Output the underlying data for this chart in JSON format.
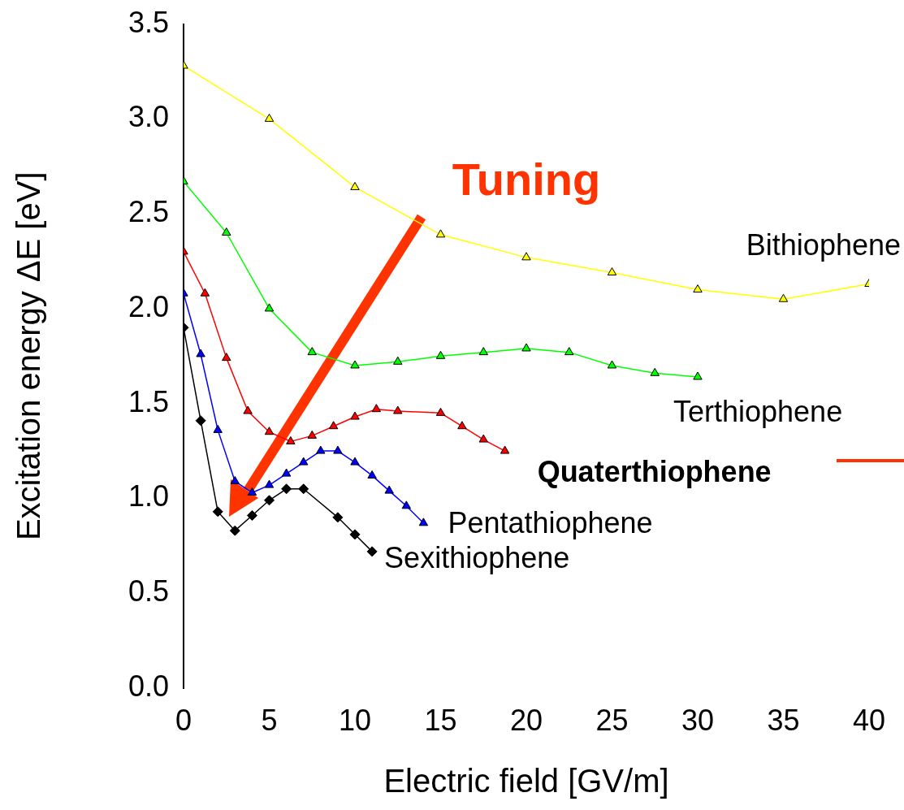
{
  "chart_data": {
    "type": "line",
    "xlabel": "Electric field [GV/m]",
    "ylabel": "Excitation energy ΔE [eV]",
    "xlim": [
      0,
      40
    ],
    "xticks": [
      0,
      5,
      10,
      15,
      20,
      25,
      30,
      35,
      40
    ],
    "ylim": [
      0,
      3.5
    ],
    "yticks": [
      {
        "value": 0,
        "label": "0.0"
      },
      {
        "value": 0.5,
        "label": "0.5"
      },
      {
        "value": 1,
        "label": "1.0"
      },
      {
        "value": 1.5,
        "label": "1.5"
      },
      {
        "value": 2,
        "label": "2.0"
      },
      {
        "value": 2.5,
        "label": "2.5"
      },
      {
        "value": 3,
        "label": "3.0"
      },
      {
        "value": 3.5,
        "label": "3.5"
      }
    ],
    "grid": false,
    "legend": false,
    "marker": "triangle",
    "annotations": [
      "Tuning"
    ],
    "series": [
      {
        "name": "Bithiophene",
        "color": "#ffff00",
        "x": [
          0,
          5,
          10,
          15,
          20,
          25,
          30,
          35,
          40
        ],
        "values": [
          3.28,
          3.0,
          2.64,
          2.39,
          2.27,
          2.19,
          2.1,
          2.05,
          2.13
        ]
      },
      {
        "name": "Terthiophene",
        "color": "#00ff00",
        "x": [
          0,
          2.5,
          5,
          7.5,
          10,
          12.5,
          15,
          17.5,
          20,
          22.5,
          25,
          27.5,
          30
        ],
        "values": [
          2.67,
          2.4,
          2.0,
          1.77,
          1.7,
          1.72,
          1.75,
          1.77,
          1.79,
          1.77,
          1.7,
          1.66,
          1.64
        ]
      },
      {
        "name": "Quaterthiophene",
        "color": "#ff0000",
        "x": [
          0,
          1.25,
          2.5,
          3.75,
          5,
          6.25,
          7.5,
          8.75,
          10,
          11.25,
          12.5,
          15,
          16.25,
          17.5,
          18.75
        ],
        "values": [
          2.3,
          2.08,
          1.74,
          1.46,
          1.35,
          1.3,
          1.33,
          1.38,
          1.43,
          1.47,
          1.46,
          1.45,
          1.38,
          1.31,
          1.25
        ]
      },
      {
        "name": "Pentathiophene",
        "color": "#0000ff",
        "x": [
          0,
          1,
          2,
          3,
          4,
          5,
          6,
          7,
          8,
          9,
          10,
          11,
          12,
          13,
          14
        ],
        "values": [
          2.08,
          1.76,
          1.36,
          1.09,
          1.03,
          1.07,
          1.13,
          1.19,
          1.25,
          1.25,
          1.19,
          1.12,
          1.04,
          0.96,
          0.87
        ]
      },
      {
        "name": "Sexithiophene",
        "color": "#000000",
        "marker": "diamond",
        "x": [
          0,
          1,
          2,
          3,
          4,
          5,
          6,
          7,
          9,
          10,
          11
        ],
        "values": [
          1.9,
          1.41,
          0.93,
          0.83,
          0.91,
          0.99,
          1.05,
          1.05,
          0.9,
          0.81,
          0.72
        ]
      }
    ]
  }
}
